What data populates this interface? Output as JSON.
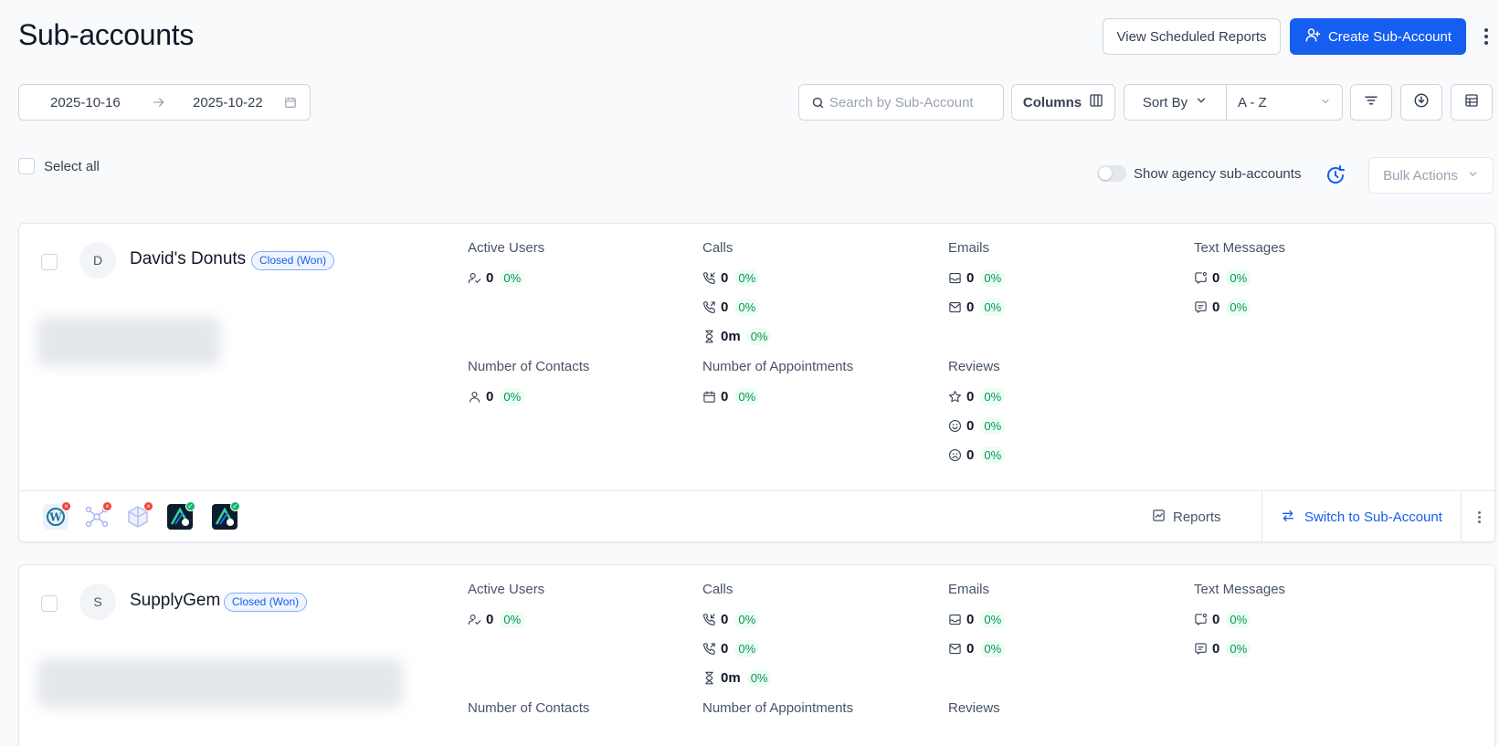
{
  "header": {
    "title": "Sub-accounts",
    "scheduled_reports_label": "View Scheduled Reports",
    "create_label": "Create Sub-Account"
  },
  "toolbar": {
    "date_start": "2025-10-16",
    "date_end": "2025-10-22",
    "search_placeholder": "Search by Sub-Account",
    "columns_label": "Columns",
    "sort_by_label": "Sort By",
    "sort_value": "A - Z"
  },
  "list_controls": {
    "select_all_label": "Select all",
    "agency_toggle_label": "Show agency sub-accounts",
    "agency_toggle_on": false,
    "bulk_actions_label": "Bulk Actions"
  },
  "metric_labels": {
    "active_users": "Active Users",
    "calls": "Calls",
    "emails": "Emails",
    "text_messages": "Text Messages",
    "contacts": "Number of Contacts",
    "appointments": "Number of Appointments",
    "reviews": "Reviews"
  },
  "accounts": [
    {
      "initial": "D",
      "name": "David's Donuts",
      "status": "Closed (Won)",
      "metrics": {
        "active_users": {
          "value": "0",
          "pct": "0%"
        },
        "calls_inbound": {
          "value": "0",
          "pct": "0%"
        },
        "calls_outbound": {
          "value": "0",
          "pct": "0%"
        },
        "call_duration": {
          "value": "0m",
          "pct": "0%"
        },
        "emails_received": {
          "value": "0",
          "pct": "0%"
        },
        "emails_sent": {
          "value": "0",
          "pct": "0%"
        },
        "sms_received": {
          "value": "0",
          "pct": "0%"
        },
        "sms_sent": {
          "value": "0",
          "pct": "0%"
        },
        "contacts": {
          "value": "0",
          "pct": "0%"
        },
        "appointments": {
          "value": "0",
          "pct": "0%"
        },
        "reviews_total": {
          "value": "0",
          "pct": "0%"
        },
        "reviews_positive": {
          "value": "0",
          "pct": "0%"
        },
        "reviews_negative": {
          "value": "0",
          "pct": "0%"
        }
      },
      "integrations": [
        {
          "icon": "wordpress-icon",
          "status": "disconnected"
        },
        {
          "icon": "network-icon",
          "status": "disconnected"
        },
        {
          "icon": "cube-icon",
          "status": "disconnected"
        },
        {
          "icon": "app-icon",
          "status": "connected"
        },
        {
          "icon": "app-icon",
          "status": "connected"
        }
      ],
      "footer": {
        "reports_label": "Reports",
        "switch_label": "Switch to Sub-Account"
      }
    },
    {
      "initial": "S",
      "name": "SupplyGem",
      "status": "Closed (Won)",
      "metrics": {
        "active_users": {
          "value": "0",
          "pct": "0%"
        },
        "calls_inbound": {
          "value": "0",
          "pct": "0%"
        },
        "calls_outbound": {
          "value": "0",
          "pct": "0%"
        },
        "call_duration": {
          "value": "0m",
          "pct": "0%"
        },
        "emails_received": {
          "value": "0",
          "pct": "0%"
        },
        "emails_sent": {
          "value": "0",
          "pct": "0%"
        },
        "sms_received": {
          "value": "0",
          "pct": "0%"
        },
        "sms_sent": {
          "value": "0",
          "pct": "0%"
        }
      }
    }
  ],
  "colors": {
    "primary": "#155eef",
    "success_text": "#079455",
    "success_bg": "#ecfdf3",
    "error": "#f04438",
    "connected": "#12b76a"
  }
}
